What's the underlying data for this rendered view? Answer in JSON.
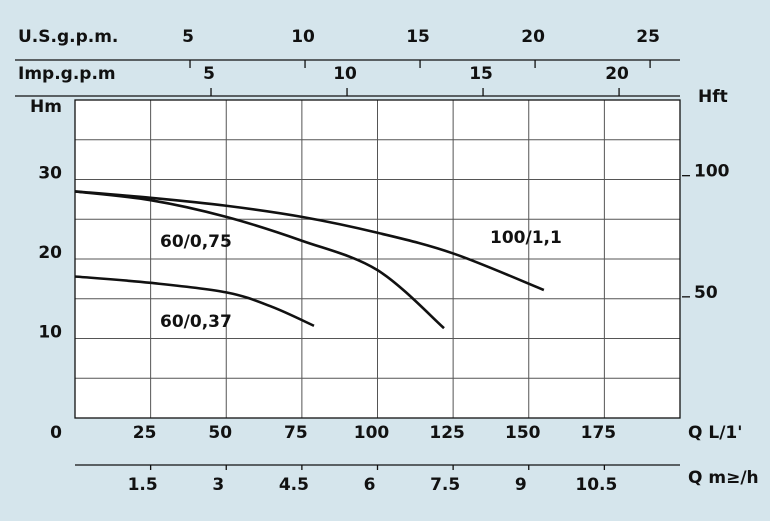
{
  "chart_data": {
    "type": "line",
    "x_label": "Q L/1'",
    "xlim": [
      0,
      200
    ],
    "xticks": [
      25,
      50,
      75,
      100,
      125,
      150,
      175
    ],
    "y_label": "Hm",
    "ylim": [
      0,
      40
    ],
    "yticks": [
      0,
      10,
      20,
      30
    ],
    "minor_yticks": [
      5,
      15,
      25,
      35
    ],
    "y2_label": "Hft",
    "y2lim": [
      0,
      131.23
    ],
    "y2ticks": [
      50,
      100
    ],
    "grid": true,
    "secondary_x_axes": [
      {
        "label": "U.S.g.p.m.",
        "lim": [
          0,
          26.3
        ],
        "ticks": [
          5,
          10,
          15,
          20,
          25
        ],
        "position": "top"
      },
      {
        "label": "Imp.g.p.m",
        "lim": [
          0,
          22.24
        ],
        "ticks": [
          5,
          10,
          15,
          20
        ],
        "position": "top"
      },
      {
        "label": "Q m≥/h",
        "lim": [
          0,
          12
        ],
        "ticks": [
          1.5,
          3,
          4.5,
          6,
          7.5,
          9,
          10.5
        ],
        "position": "bottom"
      }
    ],
    "series": [
      {
        "name": "100/1,1",
        "color": "#111111",
        "x": [
          0,
          25,
          50,
          75,
          100,
          125,
          155
        ],
        "values": [
          28.5,
          27.7,
          26.7,
          25.3,
          23.3,
          20.7,
          16.1
        ]
      },
      {
        "name": "60/0,75",
        "color": "#111111",
        "x": [
          0,
          25,
          50,
          75,
          100,
          122
        ],
        "values": [
          28.5,
          27.4,
          25.3,
          22.3,
          18.6,
          11.3
        ]
      },
      {
        "name": "60/0,37",
        "color": "#111111",
        "x": [
          0,
          25,
          50,
          65,
          79
        ],
        "values": [
          17.8,
          17.0,
          15.8,
          14.0,
          11.6
        ]
      }
    ]
  }
}
